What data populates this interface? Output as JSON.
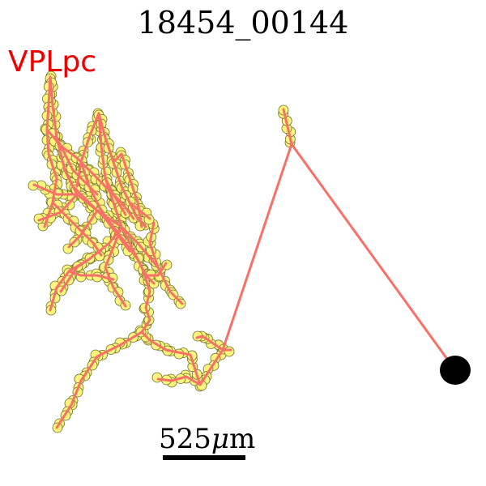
{
  "title": "18454_00144",
  "region_label": "VPLpc",
  "scale_bar": {
    "value": "525",
    "unit_symbol": "μ",
    "unit_suffix": "m"
  },
  "colors": {
    "axon": "#f87068",
    "node_fill": "#fbf47c",
    "node_stroke": "#6e6e2c",
    "soma": "#000000",
    "region_label": "#ee0000"
  }
}
